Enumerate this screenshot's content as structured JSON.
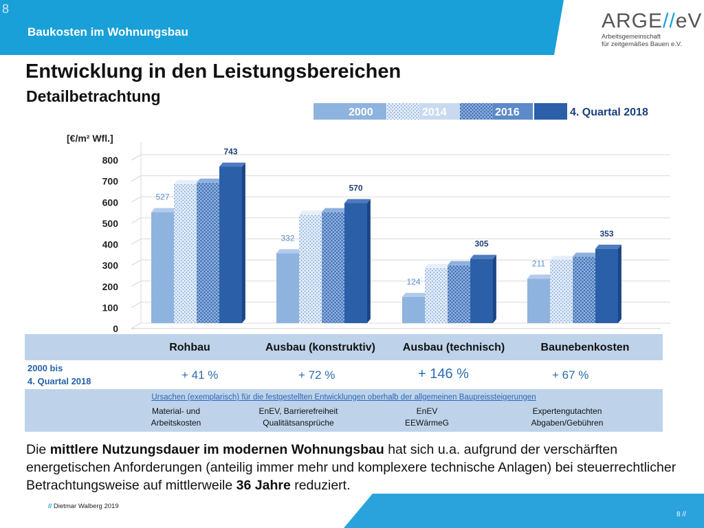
{
  "header": {
    "slide_number": "8",
    "section": "Baukosten im Wohnungsbau",
    "accent_color": "#1aa0d8"
  },
  "logo": {
    "main": "ARGE",
    "slashes": "//",
    "main_suffix": "eV",
    "sub1": "Arbeitsgemeinschaft",
    "sub2": "für zeitgemäßes Bauen e.V."
  },
  "title": "Entwicklung in den Leistungsbereichen",
  "subtitle": "Detailbetrachtung",
  "chart_data": {
    "type": "bar",
    "ylabel": "[€/m² Wfl.]",
    "ylim": [
      0,
      800
    ],
    "yticks": [
      "0",
      "100",
      "200",
      "300",
      "400",
      "500",
      "600",
      "700",
      "800"
    ],
    "categories": [
      "Rohbau",
      "Ausbau (konstruktiv)",
      "Ausbau (technisch)",
      "Baunebenkosten"
    ],
    "legend_position": "top",
    "grid": true,
    "series": [
      {
        "name": "2000",
        "values": [
          527,
          332,
          124,
          211
        ],
        "labels": [
          "527",
          "332",
          "124",
          "211"
        ],
        "color": "#8fb3df"
      },
      {
        "name": "2014",
        "values": [
          660,
          515,
          262,
          300
        ],
        "labels": [
          "",
          "",
          "",
          ""
        ],
        "color": "#c9daf0"
      },
      {
        "name": "2016",
        "values": [
          667,
          527,
          275,
          315
        ],
        "labels": [
          "",
          "",
          "",
          ""
        ],
        "color": "#5d8ac8"
      },
      {
        "name": "4. Quartal 2018",
        "values": [
          743,
          570,
          305,
          353
        ],
        "labels": [
          "743",
          "570",
          "305",
          "353"
        ],
        "color": "#2b5fa8"
      }
    ]
  },
  "table": {
    "row_label_line1": "2000 bis",
    "row_label_line2": "4. Quartal 2018",
    "changes": [
      "+ 41 %",
      "+ 72 %",
      "+ 146 %",
      "+ 67 %"
    ],
    "causes_heading": "Ursachen (exemplarisch) für die festgestellten Entwicklungen oberhalb der allgemeinen Baupreissteigerungen",
    "causes": [
      {
        "line1": "Material- und",
        "line2": "Arbeitskosten"
      },
      {
        "line1": "EnEV, Barrierefreiheit",
        "line2": "Qualitätsansprüche"
      },
      {
        "line1": "EnEV",
        "line2": "EEWärmeG"
      },
      {
        "line1": "Expertengutachten",
        "line2": "Abgaben/Gebühren"
      }
    ]
  },
  "paragraph": {
    "p1": "Die ",
    "b1": "mittlere Nutzungsdauer im modernen Wohnungsbau",
    "p2": " hat sich u.a. aufgrund der verschärften energetischen Anforderungen (anteilig immer mehr und komplexere technische Anlagen) bei steuerrechtlicher Betrachtungsweise auf mittlerweile ",
    "b2": "36 Jahre",
    "p3": " reduziert."
  },
  "footer": {
    "slashes": "//",
    "author": "Dietmar Walberg 2019",
    "page": "8 //"
  }
}
